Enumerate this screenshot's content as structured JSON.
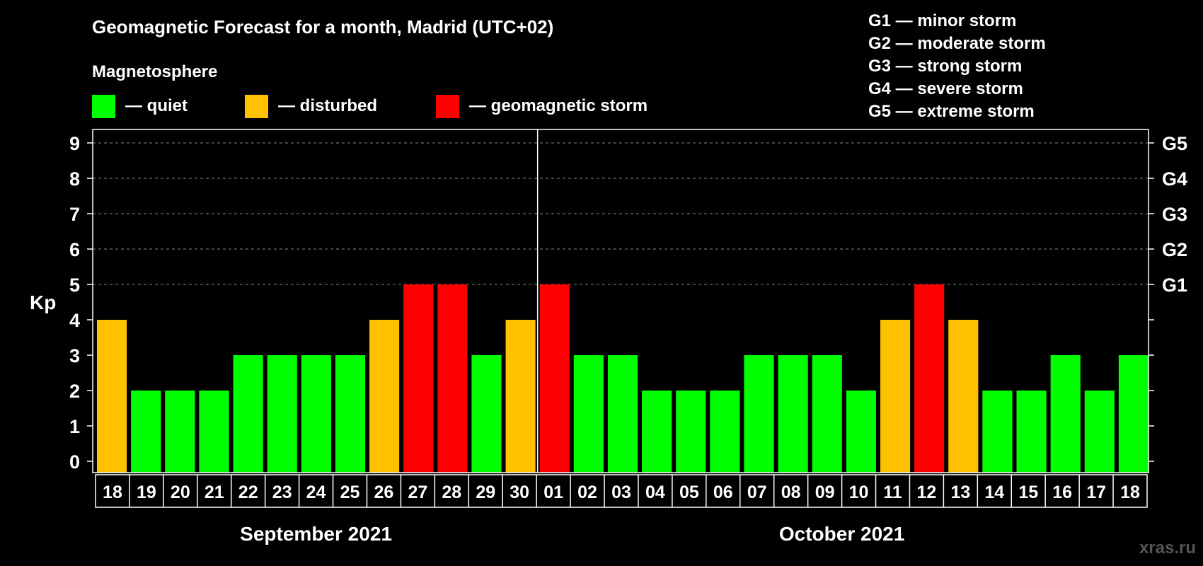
{
  "chart_data": {
    "type": "bar",
    "title": "Geomagnetic Forecast for a month, Madrid (UTC+02)",
    "legend": {
      "heading": "Magnetosphere",
      "items": [
        {
          "key": "quiet",
          "label": "— quiet",
          "color": "#00ff00"
        },
        {
          "key": "disturbed",
          "label": "— disturbed",
          "color": "#ffc000"
        },
        {
          "key": "storm",
          "label": "— geomagnetic storm",
          "color": "#ff0000"
        }
      ]
    },
    "storm_scale": [
      "G1 — minor storm",
      "G2 — moderate storm",
      "G3 — strong storm",
      "G4 — severe storm",
      "G5 — extreme storm"
    ],
    "ylabel": "Kp",
    "ylim": [
      0,
      9
    ],
    "yticks": [
      "0",
      "1",
      "2",
      "3",
      "4",
      "5",
      "6",
      "7",
      "8",
      "9"
    ],
    "right_axis": [
      {
        "kp": 5,
        "label": "G1"
      },
      {
        "kp": 6,
        "label": "G2"
      },
      {
        "kp": 7,
        "label": "G3"
      },
      {
        "kp": 8,
        "label": "G4"
      },
      {
        "kp": 9,
        "label": "G5"
      }
    ],
    "categories": [
      "18",
      "19",
      "20",
      "21",
      "22",
      "23",
      "24",
      "25",
      "26",
      "27",
      "28",
      "29",
      "30",
      "01",
      "02",
      "03",
      "04",
      "05",
      "06",
      "07",
      "08",
      "09",
      "10",
      "11",
      "12",
      "13",
      "14",
      "15",
      "16",
      "17",
      "18"
    ],
    "values": [
      4,
      2,
      2,
      2,
      3,
      3,
      3,
      3,
      4,
      5,
      5,
      3,
      4,
      5,
      3,
      3,
      2,
      2,
      2,
      3,
      3,
      3,
      2,
      4,
      5,
      4,
      2,
      2,
      3,
      2,
      3
    ],
    "months": [
      {
        "label": "September 2021",
        "start": 0,
        "count": 13
      },
      {
        "label": "October 2021",
        "start": 13,
        "count": 18
      }
    ]
  },
  "watermark": "xras.ru"
}
